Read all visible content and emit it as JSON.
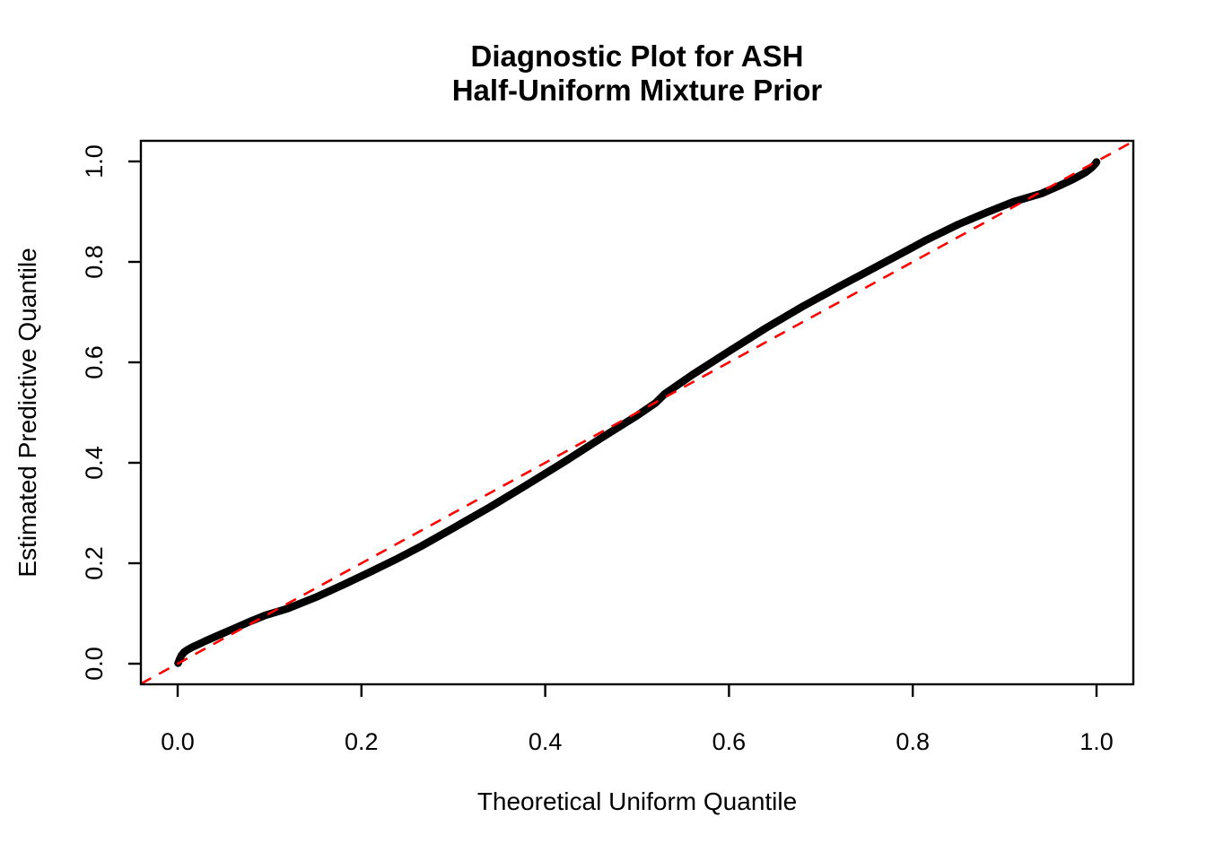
{
  "figure": {
    "background": "#FFFFFF",
    "frame_color": "#000000"
  },
  "chart_data": {
    "type": "line",
    "title_lines": [
      "Diagnostic Plot for ASH",
      "Half-Uniform Mixture Prior"
    ],
    "xlabel": "Theoretical Uniform Quantile",
    "ylabel": "Estimated Predictive Quantile",
    "xlim": [
      -0.04,
      1.04
    ],
    "ylim": [
      -0.04,
      1.04
    ],
    "x_ticks": [
      0.0,
      0.2,
      0.4,
      0.6,
      0.8,
      1.0
    ],
    "y_ticks": [
      0.0,
      0.2,
      0.4,
      0.6,
      0.8,
      1.0
    ],
    "x_tick_labels": [
      "0.0",
      "0.2",
      "0.4",
      "0.6",
      "0.8",
      "1.0"
    ],
    "y_tick_labels": [
      "0.0",
      "0.2",
      "0.4",
      "0.6",
      "0.8",
      "1.0"
    ],
    "grid": false,
    "legend": "none",
    "series": [
      {
        "name": "estimated-predictive-quantiles",
        "color": "#000000",
        "style": "solid-thick",
        "points": [
          [
            0.0005,
            0.001
          ],
          [
            0.002,
            0.008
          ],
          [
            0.004,
            0.016
          ],
          [
            0.007,
            0.023
          ],
          [
            0.011,
            0.028
          ],
          [
            0.016,
            0.033
          ],
          [
            0.022,
            0.038
          ],
          [
            0.03,
            0.045
          ],
          [
            0.04,
            0.053
          ],
          [
            0.05,
            0.061
          ],
          [
            0.065,
            0.073
          ],
          [
            0.08,
            0.085
          ],
          [
            0.095,
            0.096
          ],
          [
            0.12,
            0.11
          ],
          [
            0.15,
            0.132
          ],
          [
            0.18,
            0.157
          ],
          [
            0.21,
            0.183
          ],
          [
            0.24,
            0.21
          ],
          [
            0.265,
            0.234
          ],
          [
            0.3,
            0.27
          ],
          [
            0.34,
            0.312
          ],
          [
            0.38,
            0.356
          ],
          [
            0.42,
            0.401
          ],
          [
            0.46,
            0.448
          ],
          [
            0.5,
            0.494
          ],
          [
            0.52,
            0.519
          ],
          [
            0.53,
            0.537
          ],
          [
            0.56,
            0.575
          ],
          [
            0.6,
            0.622
          ],
          [
            0.64,
            0.668
          ],
          [
            0.68,
            0.711
          ],
          [
            0.72,
            0.751
          ],
          [
            0.76,
            0.79
          ],
          [
            0.8,
            0.829
          ],
          [
            0.815,
            0.844
          ],
          [
            0.85,
            0.875
          ],
          [
            0.88,
            0.898
          ],
          [
            0.91,
            0.92
          ],
          [
            0.925,
            0.928
          ],
          [
            0.94,
            0.936
          ],
          [
            0.96,
            0.952
          ],
          [
            0.975,
            0.965
          ],
          [
            0.988,
            0.978
          ],
          [
            0.995,
            0.988
          ],
          [
            0.999,
            0.996
          ],
          [
            1.0,
            0.999
          ]
        ]
      },
      {
        "name": "reference-diagonal",
        "color": "#FF0000",
        "style": "dashed",
        "points": [
          [
            -0.04,
            -0.04
          ],
          [
            1.04,
            1.04
          ]
        ]
      }
    ]
  }
}
